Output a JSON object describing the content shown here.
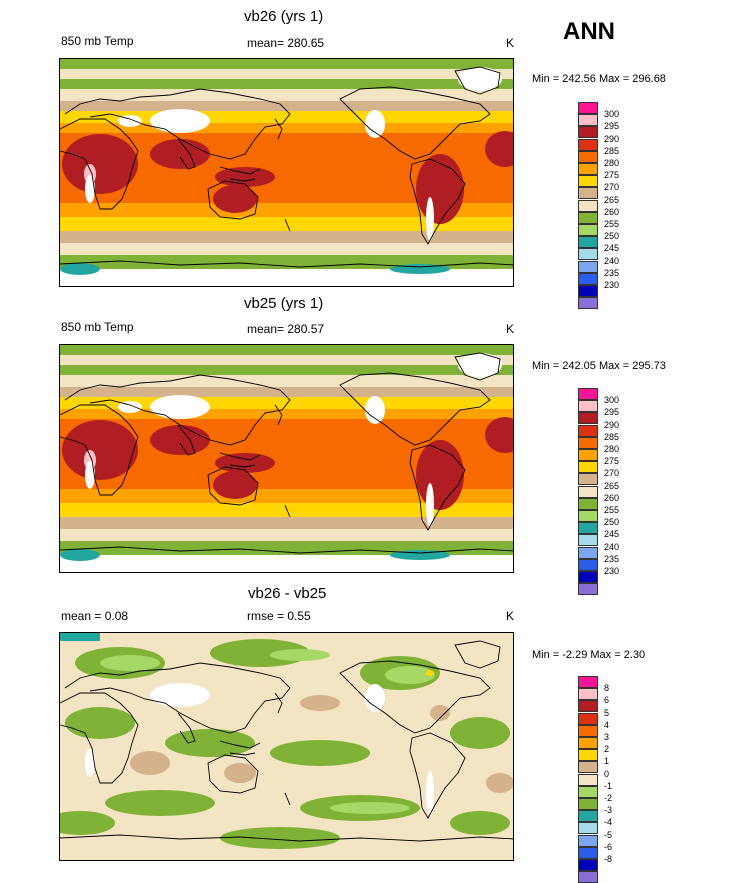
{
  "header": {
    "season": "ANN"
  },
  "colors": {
    "t": [
      "#8a6fd6",
      "#0000b4",
      "#2d5bea",
      "#7ea6ef",
      "#a3dbe8",
      "#24a6a0",
      "#a6d865",
      "#7fb236",
      "#f3e5c4",
      "#d4b28c",
      "#ffd700",
      "#ffa200",
      "#f66a00",
      "#dc3214",
      "#b01e23",
      "#ffbfc9",
      "#ff1493"
    ],
    "d": [
      "#8a6fd6",
      "#0000b4",
      "#2d5bea",
      "#7ea6ef",
      "#a3dbe8",
      "#24a6a0",
      "#7fb236",
      "#a6d865",
      "#f3e5c4",
      "#d4b28c",
      "#ffd700",
      "#ffa200",
      "#f66a00",
      "#dc3214",
      "#b01e23",
      "#ffbfc9",
      "#ff1493"
    ]
  },
  "chart_data": [
    {
      "type": "heatmap",
      "title": "vb26 (yrs 1)",
      "variable": "850 mb Temp",
      "mean_label": "mean= 280.65",
      "units": "K",
      "minmax": "Min = 242.56 Max = 296.68",
      "legend_levels": [
        "300",
        "295",
        "290",
        "285",
        "280",
        "275",
        "270",
        "265",
        "260",
        "255",
        "250",
        "245",
        "240",
        "235",
        "230"
      ]
    },
    {
      "type": "heatmap",
      "title": "vb25 (yrs 1)",
      "variable": "850 mb Temp",
      "mean_label": "mean= 280.57",
      "units": "K",
      "minmax": "Min = 242.05 Max = 295.73",
      "legend_levels": [
        "300",
        "295",
        "290",
        "285",
        "280",
        "275",
        "270",
        "265",
        "260",
        "255",
        "250",
        "245",
        "240",
        "235",
        "230"
      ]
    },
    {
      "type": "heatmap",
      "title": "vb26 - vb25",
      "mean_label": "mean =   0.08",
      "rmse_label": "rmse =   0.55",
      "units": "K",
      "minmax": "Min =  -2.29 Max =   2.30",
      "legend_levels": [
        "8",
        "6",
        "5",
        "4",
        "3",
        "2",
        "1",
        "0",
        "-1",
        "-2",
        "-3",
        "-4",
        "-5",
        "-6",
        "-8"
      ]
    }
  ]
}
